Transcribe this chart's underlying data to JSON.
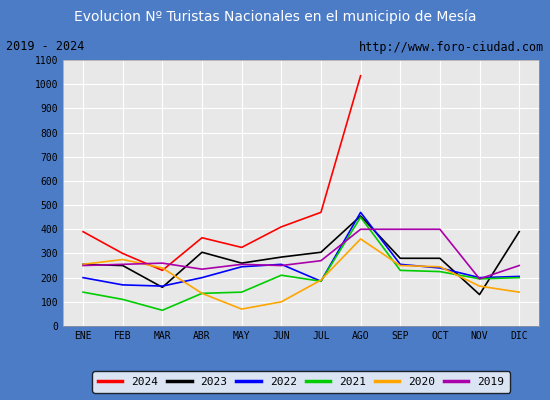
{
  "title": "Evolucion Nº Turistas Nacionales en el municipio de Mesía",
  "subtitle_left": "2019 - 2024",
  "subtitle_right": "http://www.foro-ciudad.com",
  "title_bg_color": "#4d7cc7",
  "title_text_color": "#ffffff",
  "months": [
    "ENE",
    "FEB",
    "MAR",
    "ABR",
    "MAY",
    "JUN",
    "JUL",
    "AGO",
    "SEP",
    "OCT",
    "NOV",
    "DIC"
  ],
  "ylim": [
    0,
    1100
  ],
  "yticks": [
    0,
    100,
    200,
    300,
    400,
    500,
    600,
    700,
    800,
    900,
    1000,
    1100
  ],
  "series": {
    "2024": {
      "color": "#ff0000",
      "data": [
        390,
        300,
        230,
        365,
        325,
        410,
        470,
        1035,
        null,
        null,
        null,
        null
      ]
    },
    "2023": {
      "color": "#000000",
      "data": [
        255,
        250,
        160,
        305,
        260,
        285,
        305,
        455,
        280,
        280,
        130,
        390
      ]
    },
    "2022": {
      "color": "#0000ff",
      "data": [
        200,
        170,
        165,
        200,
        245,
        255,
        185,
        470,
        255,
        240,
        200,
        205
      ]
    },
    "2021": {
      "color": "#00cc00",
      "data": [
        140,
        110,
        65,
        135,
        140,
        210,
        185,
        450,
        230,
        225,
        195,
        200
      ]
    },
    "2020": {
      "color": "#ffa500",
      "data": [
        255,
        275,
        240,
        135,
        70,
        100,
        190,
        360,
        250,
        245,
        165,
        140
      ]
    },
    "2019": {
      "color": "#aa00aa",
      "data": [
        250,
        255,
        260,
        235,
        255,
        250,
        270,
        400,
        400,
        400,
        195,
        250
      ]
    }
  },
  "legend_order": [
    "2024",
    "2023",
    "2022",
    "2021",
    "2020",
    "2019"
  ],
  "bg_color": "#e8e8e8",
  "plot_bg_color": "#e8e8e8",
  "subtitle_bg_color": "#d8d8d8",
  "grid_color": "#ffffff",
  "border_color": "#4d7cc7"
}
